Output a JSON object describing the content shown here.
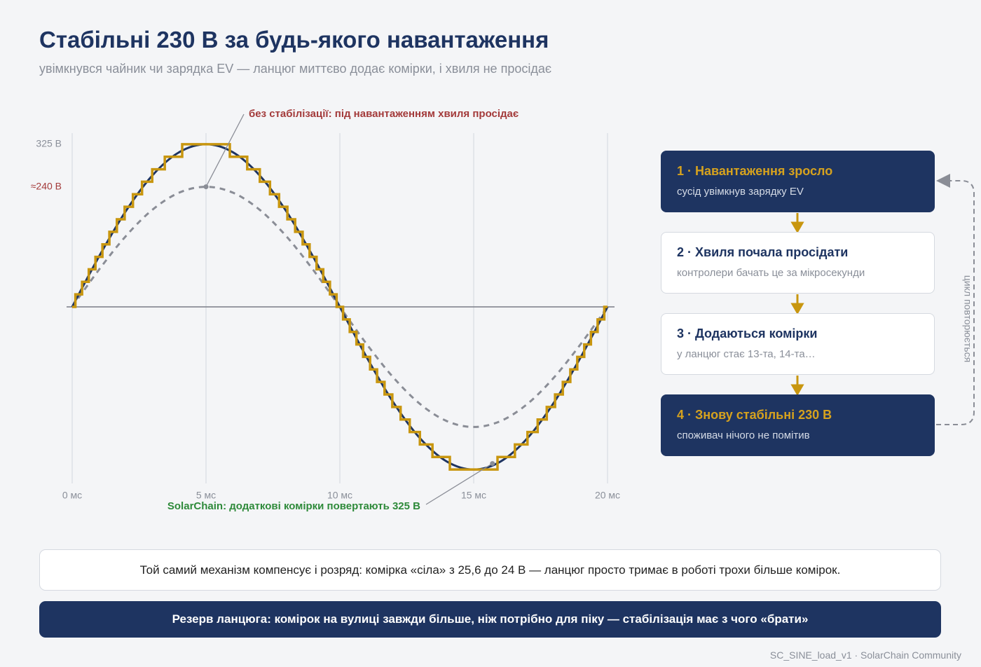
{
  "header": {
    "title": "Стабільні 230 В за будь-якого навантаження",
    "subtitle": "увімкнувся чайник чи зарядка EV — ланцюг миттєво додає комірки, і хвиля не просідає"
  },
  "chart_data": {
    "type": "line",
    "xlim": [
      0,
      20
    ],
    "xticks": [
      {
        "value": 0,
        "label": "0 мс"
      },
      {
        "value": 5,
        "label": "5 мс"
      },
      {
        "value": 10,
        "label": "10 мс"
      },
      {
        "value": 15,
        "label": "15 мс"
      },
      {
        "value": 20,
        "label": "20 мс"
      }
    ],
    "ylim": [
      -350,
      350
    ],
    "yticks": [
      {
        "value": 325,
        "label": "325 В"
      },
      {
        "value": 240,
        "label": "≈240 В"
      }
    ],
    "ytick_colors": [
      "#8a8f99",
      "#a33a3a"
    ],
    "grid": true,
    "series": [
      {
        "color": "#8a8d96",
        "style": "dashed",
        "x": [
          0,
          1,
          2,
          3,
          4,
          5,
          6,
          7,
          8,
          9,
          10,
          11,
          12,
          13,
          14,
          15,
          16,
          17,
          18,
          19,
          20
        ],
        "values": [
          0,
          74.2,
          141.1,
          194.2,
          228.3,
          240,
          228.3,
          194.2,
          141.1,
          74.2,
          0,
          -74.2,
          -141.1,
          -194.2,
          -228.3,
          -240,
          -228.3,
          -194.2,
          -141.1,
          -74.2,
          0
        ]
      },
      {
        "color": "#1e3461",
        "style": "solid",
        "x": [
          0,
          1,
          2,
          3,
          4,
          5,
          6,
          7,
          8,
          9,
          10,
          11,
          12,
          13,
          14,
          15,
          16,
          17,
          18,
          19,
          20
        ],
        "values": [
          0,
          100.4,
          191,
          262.9,
          309.1,
          325,
          309.1,
          262.9,
          191,
          100.4,
          0,
          -100.4,
          -191,
          -262.9,
          -309.1,
          -325,
          -309.1,
          -262.9,
          -191,
          -100.4,
          0
        ]
      },
      {
        "color": "#c8960f",
        "style": "step",
        "x": [
          0,
          0.12,
          0.37,
          0.62,
          0.87,
          1.13,
          1.39,
          1.67,
          1.96,
          2.27,
          2.61,
          2.99,
          3.46,
          4.11,
          5.89,
          6.54,
          7.01,
          7.39,
          7.73,
          8.04,
          8.33,
          8.61,
          8.87,
          9.13,
          9.38,
          9.63,
          9.88,
          10.12,
          10.37,
          10.62,
          10.87,
          11.13,
          11.39,
          11.67,
          11.96,
          12.27,
          12.61,
          12.99,
          13.46,
          14.11,
          15.89,
          16.54,
          17.01,
          17.39,
          17.73,
          18.04,
          18.33,
          18.61,
          18.87,
          19.13,
          19.38,
          19.63,
          19.88,
          20
        ],
        "values": [
          0,
          25,
          50,
          75,
          100,
          125,
          150,
          175,
          200,
          225,
          250,
          275,
          300,
          325,
          300,
          275,
          250,
          225,
          200,
          175,
          150,
          125,
          100,
          75,
          50,
          25,
          0,
          -25,
          -50,
          -75,
          -100,
          -125,
          -150,
          -175,
          -200,
          -225,
          -250,
          -275,
          -300,
          -325,
          -300,
          -275,
          -250,
          -225,
          -200,
          -175,
          -150,
          -125,
          -100,
          -75,
          -50,
          -25,
          0,
          0
        ]
      }
    ],
    "annotations": [
      {
        "text": "без стабілізації: під навантаженням хвиля просідає",
        "x": 5,
        "y": 240,
        "color": "#a33a3a"
      },
      {
        "text": "SolarChain: додаткові комірки повертають 325 В",
        "x": 15.7,
        "y": -313,
        "color": "#2e8a3a"
      }
    ]
  },
  "flow": {
    "steps": [
      {
        "title": "1 · Навантаження зросло",
        "text": "сусід увімкнув зарядку EV",
        "style": "dark"
      },
      {
        "title": "2 · Хвиля почала просідати",
        "text": "контролери бачать це за мікросекунди",
        "style": "light"
      },
      {
        "title": "3 · Додаються комірки",
        "text": "у ланцюг стає 13-та, 14-та…",
        "style": "light"
      },
      {
        "title": "4 · Знову стабільні 230 В",
        "text": "споживач нічого не помітив",
        "style": "dark"
      }
    ],
    "loop_label": "цикл повторюється"
  },
  "note": "Той самий механізм компенсує і розряд: комірка «сіла» з 25,6 до 24 В — ланцюг просто тримає в роботі трохи більше комірок.",
  "banner": "Резерв ланцюга: комірок на вулиці завжди більше, ніж потрібно для піку — стабілізація має з чого «брати»",
  "footer": "SC_SINE_load_v1 · SolarChain Community"
}
